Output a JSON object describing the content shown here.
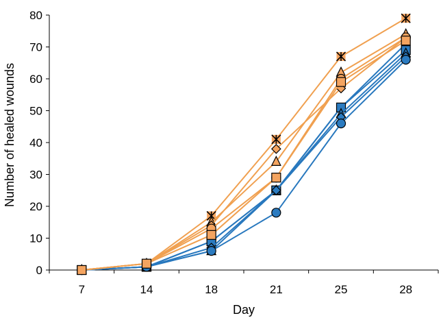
{
  "chart_data": {
    "type": "line",
    "title": "",
    "xlabel": "Day",
    "ylabel": "Number of healed wounds",
    "x": [
      "7",
      "14",
      "18",
      "21",
      "25",
      "28"
    ],
    "ylim": [
      0,
      80
    ],
    "yticks": [
      "0",
      "10",
      "20",
      "30",
      "40",
      "50",
      "60",
      "70",
      "80"
    ],
    "grid": false,
    "legend": "none",
    "colors": {
      "orange": "#F0A050",
      "orange_marker": "#F4A460",
      "blue": "#2878BE",
      "blue_marker": "#2B7BC0"
    },
    "series": [
      {
        "group": "orange",
        "marker": "asterisk",
        "values": [
          0,
          2,
          17,
          41,
          67,
          79
        ]
      },
      {
        "group": "orange",
        "marker": "triangle",
        "values": [
          0,
          2,
          15,
          34,
          62,
          74
        ]
      },
      {
        "group": "orange",
        "marker": "diamond",
        "values": [
          0,
          2,
          14,
          38,
          57,
          73
        ]
      },
      {
        "group": "orange",
        "marker": "circle",
        "values": [
          0,
          2,
          13,
          29,
          60,
          73
        ]
      },
      {
        "group": "orange",
        "marker": "square",
        "values": [
          0,
          2,
          11,
          29,
          59,
          72
        ]
      },
      {
        "group": "blue",
        "marker": "asterisk",
        "values": [
          0,
          1,
          9,
          25,
          51,
          71
        ]
      },
      {
        "group": "blue",
        "marker": "square",
        "values": [
          0,
          1,
          9,
          25,
          51,
          69
        ]
      },
      {
        "group": "blue",
        "marker": "triangle",
        "values": [
          0,
          1,
          6,
          25,
          49,
          68
        ]
      },
      {
        "group": "blue",
        "marker": "diamond",
        "values": [
          0,
          1,
          7,
          25,
          48,
          67
        ]
      },
      {
        "group": "blue",
        "marker": "circle",
        "values": [
          0,
          1,
          6,
          18,
          46,
          66
        ]
      }
    ]
  }
}
